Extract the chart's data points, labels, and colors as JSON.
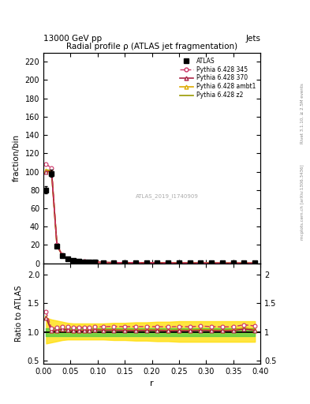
{
  "title": "Radial profile ρ (ATLAS jet fragmentation)",
  "header_left": "13000 GeV pp",
  "header_right": "Jets",
  "xlabel": "r",
  "ylabel_main": "fraction/bin",
  "ylabel_ratio": "Ratio to ATLAS",
  "right_label_top": "Rivet 3.1.10, ≥ 2.5M events",
  "right_label_bottom": "mcplots.cern.ch [arXiv:1306.3436]",
  "watermark": "ATLAS_2019_I1740909",
  "xlim": [
    0.0,
    0.4
  ],
  "ylim_main": [
    0,
    230
  ],
  "ylim_ratio": [
    0.45,
    2.2
  ],
  "yticks_main": [
    0,
    20,
    40,
    60,
    80,
    100,
    120,
    140,
    160,
    180,
    200,
    220
  ],
  "yticks_ratio": [
    0.5,
    1.0,
    1.5,
    2.0
  ],
  "r_values": [
    0.005,
    0.015,
    0.025,
    0.035,
    0.045,
    0.055,
    0.065,
    0.075,
    0.085,
    0.095,
    0.11,
    0.13,
    0.15,
    0.17,
    0.19,
    0.21,
    0.23,
    0.25,
    0.27,
    0.29,
    0.31,
    0.33,
    0.35,
    0.37,
    0.39
  ],
  "atlas_values": [
    80,
    98,
    19,
    8,
    4.5,
    3.0,
    2.2,
    1.7,
    1.4,
    1.1,
    0.85,
    0.7,
    0.58,
    0.5,
    0.43,
    0.37,
    0.33,
    0.29,
    0.26,
    0.23,
    0.21,
    0.19,
    0.17,
    0.15,
    0.14
  ],
  "atlas_errors": [
    4,
    4,
    1,
    0.4,
    0.25,
    0.18,
    0.13,
    0.1,
    0.08,
    0.07,
    0.05,
    0.04,
    0.035,
    0.03,
    0.025,
    0.022,
    0.02,
    0.018,
    0.016,
    0.014,
    0.013,
    0.011,
    0.01,
    0.009,
    0.008
  ],
  "p345_values": [
    108,
    104,
    20.5,
    8.8,
    4.9,
    3.25,
    2.38,
    1.84,
    1.52,
    1.2,
    0.93,
    0.77,
    0.635,
    0.548,
    0.471,
    0.405,
    0.36,
    0.318,
    0.284,
    0.254,
    0.23,
    0.207,
    0.186,
    0.169,
    0.155
  ],
  "p370_values": [
    100,
    100,
    19.5,
    8.4,
    4.65,
    3.07,
    2.25,
    1.74,
    1.44,
    1.14,
    0.875,
    0.722,
    0.595,
    0.513,
    0.442,
    0.381,
    0.337,
    0.297,
    0.266,
    0.237,
    0.215,
    0.194,
    0.174,
    0.158,
    0.144
  ],
  "pambt1_values": [
    101,
    100.5,
    19.4,
    8.42,
    4.67,
    3.08,
    2.26,
    1.75,
    1.45,
    1.15,
    0.88,
    0.727,
    0.599,
    0.517,
    0.445,
    0.383,
    0.339,
    0.299,
    0.268,
    0.239,
    0.217,
    0.195,
    0.176,
    0.159,
    0.145
  ],
  "pz2_values": [
    102,
    101,
    19.45,
    8.45,
    4.68,
    3.09,
    2.265,
    1.755,
    1.452,
    1.152,
    0.882,
    0.729,
    0.6,
    0.518,
    0.446,
    0.384,
    0.34,
    0.3,
    0.269,
    0.24,
    0.218,
    0.196,
    0.177,
    0.16,
    0.146
  ],
  "atlas_color": "#000000",
  "p345_color": "#cc3366",
  "p370_color": "#aa2244",
  "pambt1_color": "#ddaa00",
  "pz2_color": "#999900",
  "green_band_color": "#44cc44",
  "yellow_band_color": "#ffdd00",
  "green_band_lo": 0.93,
  "green_band_hi": 1.07,
  "yellow_band_lo_vals": [
    0.8,
    0.82,
    0.84,
    0.86,
    0.87,
    0.87,
    0.87,
    0.87,
    0.87,
    0.87,
    0.87,
    0.86,
    0.86,
    0.85,
    0.85,
    0.84,
    0.84,
    0.83,
    0.83,
    0.83,
    0.83,
    0.83,
    0.83,
    0.83,
    0.83
  ],
  "yellow_band_hi_vals": [
    1.25,
    1.22,
    1.2,
    1.18,
    1.16,
    1.15,
    1.15,
    1.15,
    1.15,
    1.15,
    1.15,
    1.16,
    1.16,
    1.17,
    1.17,
    1.18,
    1.18,
    1.19,
    1.19,
    1.19,
    1.19,
    1.19,
    1.19,
    1.19,
    1.19
  ],
  "legend_entries": [
    "ATLAS",
    "Pythia 6.428 345",
    "Pythia 6.428 370",
    "Pythia 6.428 ambt1",
    "Pythia 6.428 z2"
  ]
}
